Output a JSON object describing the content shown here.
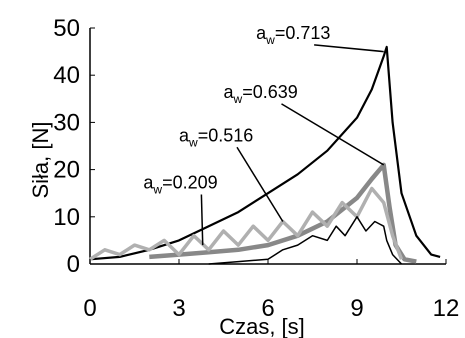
{
  "chart_data": {
    "type": "line",
    "xlabel": "Czas, [s]",
    "ylabel": "Siła, [N]",
    "xlim": [
      0,
      12
    ],
    "ylim": [
      0,
      50
    ],
    "xticks": [
      0,
      3,
      6,
      9,
      12
    ],
    "yticks": [
      0,
      10,
      20,
      30,
      40,
      50
    ],
    "grid": false,
    "legend": "none",
    "series": [
      {
        "color": "#000000",
        "x": [
          0,
          1,
          2,
          3,
          4,
          5,
          6,
          7,
          8,
          9,
          9.5,
          9.9,
          10.0,
          10.2,
          10.5,
          11.0,
          11.5,
          11.8
        ],
        "y": [
          1,
          1.5,
          3,
          5,
          8,
          11,
          15,
          19,
          24,
          31,
          37,
          44,
          46,
          30,
          15,
          6,
          2,
          1.5
        ]
      },
      {
        "color": "#888888",
        "x": [
          2,
          3,
          4,
          5,
          6,
          7,
          8,
          9,
          9.5,
          9.9,
          10.1,
          10.3,
          10.6,
          11.0
        ],
        "y": [
          1.5,
          2,
          2.5,
          3,
          4,
          6,
          9,
          14,
          18,
          21,
          12,
          4,
          1,
          0.5
        ]
      },
      {
        "color": "#b0b0b0",
        "x": [
          0,
          0.5,
          1,
          1.5,
          2,
          2.5,
          3,
          3.5,
          4,
          4.5,
          5,
          5.5,
          6,
          6.5,
          7,
          7.5,
          8,
          8.5,
          9,
          9.5,
          9.9,
          10.2,
          10.5
        ],
        "y": [
          1,
          3,
          2,
          4,
          3,
          5,
          2,
          6,
          3,
          7,
          4,
          8,
          5,
          9,
          6,
          11,
          8,
          13,
          10,
          16,
          13,
          6,
          1
        ]
      },
      {
        "color": "#000000",
        "x": [
          4,
          5,
          6,
          6.5,
          7,
          7.5,
          8,
          8.3,
          8.6,
          9.0,
          9.3,
          9.6,
          9.9,
          10.0,
          10.2,
          10.5
        ],
        "y": [
          0,
          0.5,
          1,
          3,
          4,
          6,
          5,
          8,
          6,
          10,
          7,
          9,
          8,
          5,
          2,
          0
        ]
      }
    ],
    "annotations": [
      {
        "prefix": "a",
        "sub": "w",
        "value": "=0.713",
        "x": 5.6,
        "y": 47.7,
        "target_x": 9.9,
        "target_y": 45
      },
      {
        "prefix": "a",
        "sub": "w",
        "value": "=0.639",
        "x": 4.5,
        "y": 35.2,
        "target_x": 9.9,
        "target_y": 21
      },
      {
        "prefix": "a",
        "sub": "w",
        "value": "=0.516",
        "x": 3.0,
        "y": 26.0,
        "target_x": 6.5,
        "target_y": 9
      },
      {
        "prefix": "a",
        "sub": "w",
        "value": "=0.209",
        "x": 1.8,
        "y": 16.0,
        "target_x": 3.8,
        "target_y": 4
      }
    ]
  }
}
